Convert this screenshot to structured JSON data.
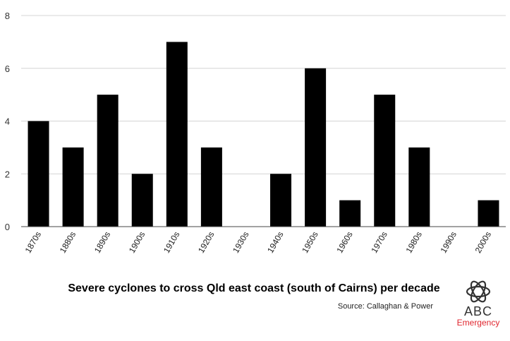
{
  "chart_data": {
    "type": "bar",
    "title": "Severe cyclones to cross Qld east coast (south of Cairns) per decade",
    "source": "Source: Callaghan & Power",
    "categories": [
      "1870s",
      "1880s",
      "1890s",
      "1900s",
      "1910s",
      "1920s",
      "1930s",
      "1940s",
      "1950s",
      "1960s",
      "1970s",
      "1980s",
      "1990s",
      "2000s"
    ],
    "values": [
      4,
      3,
      5,
      2,
      7,
      3,
      0,
      2,
      6,
      1,
      5,
      3,
      0,
      1
    ],
    "ylim": [
      0,
      8
    ],
    "yticks": [
      0,
      2,
      4,
      6,
      8
    ],
    "grid": true,
    "bar_color": "#000000"
  },
  "logo": {
    "name": "abc-logo-icon",
    "word": "ABC",
    "sub": "Emergency",
    "sub_color": "#e0262f"
  }
}
